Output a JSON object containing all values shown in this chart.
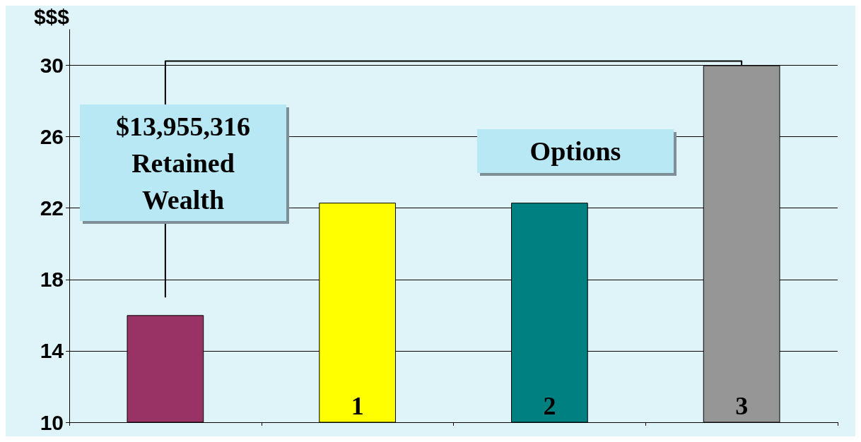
{
  "chart_data": {
    "type": "bar",
    "ylabel": "$$$",
    "categories": [
      null,
      "1",
      "2",
      "3"
    ],
    "values": [
      16,
      22.3,
      22.3,
      30
    ],
    "colors": [
      "#993366",
      "#ffff00",
      "#008080",
      "#969696"
    ],
    "ylim": [
      10,
      32
    ],
    "yticks": [
      10,
      14,
      18,
      22,
      26,
      30
    ],
    "grid": "y",
    "annotations": [
      "$13,955,316\nRetained\nWealth",
      "Options"
    ]
  }
}
